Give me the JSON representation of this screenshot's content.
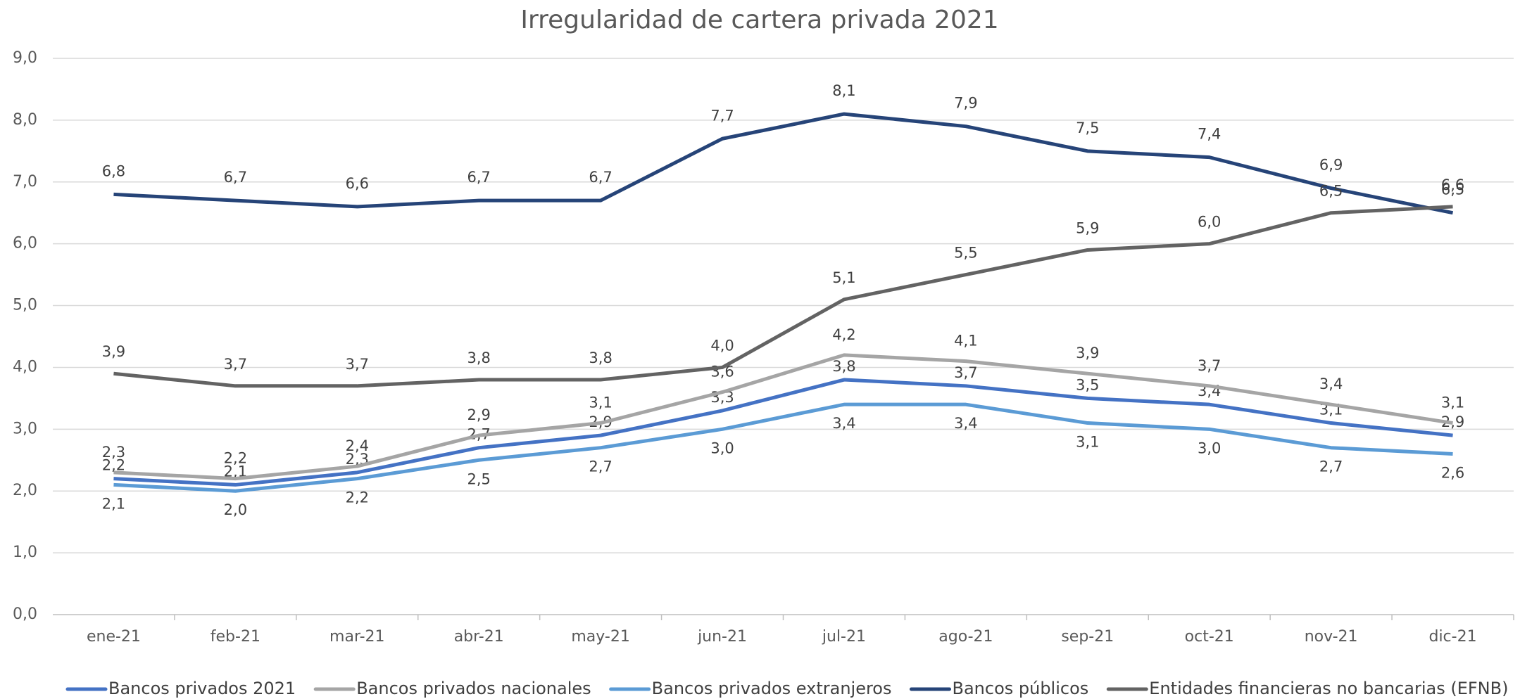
{
  "chart_data": {
    "type": "line",
    "title": "Irregularidad de cartera privada 2021",
    "categories": [
      "ene-21",
      "feb-21",
      "mar-21",
      "abr-21",
      "may-21",
      "jun-21",
      "jul-21",
      "ago-21",
      "sep-21",
      "oct-21",
      "nov-21",
      "dic-21"
    ],
    "ylim": [
      0,
      9
    ],
    "yticks": [
      {
        "value": 0,
        "label": "0,0"
      },
      {
        "value": 1,
        "label": "1,0"
      },
      {
        "value": 2,
        "label": "2,0"
      },
      {
        "value": 3,
        "label": "3,0"
      },
      {
        "value": 4,
        "label": "4,0"
      },
      {
        "value": 5,
        "label": "5,0"
      },
      {
        "value": 6,
        "label": "6,0"
      },
      {
        "value": 7,
        "label": "7,0"
      },
      {
        "value": 8,
        "label": "8,0"
      },
      {
        "value": 9,
        "label": "9,0"
      }
    ],
    "grid": true,
    "legend": "bottom",
    "series": [
      {
        "name": "Bancos privados 2021",
        "color": "#4472c4",
        "values": [
          2.2,
          2.1,
          2.3,
          2.7,
          2.9,
          3.3,
          3.8,
          3.7,
          3.5,
          3.4,
          3.1,
          2.9
        ],
        "value_labels": [
          "2,2",
          "2,1",
          "2,3",
          "2,7",
          "2,9",
          "3,3",
          "3,8",
          "3,7",
          "3,5",
          "3,4",
          "3,1",
          "2,9"
        ]
      },
      {
        "name": "Bancos privados nacionales",
        "color": "#a5a5a5",
        "values": [
          2.3,
          2.2,
          2.4,
          2.9,
          3.1,
          3.6,
          4.2,
          4.1,
          3.9,
          3.7,
          3.4,
          3.1
        ],
        "value_labels": [
          "2,3",
          "2,2",
          "2,4",
          "2,9",
          "3,1",
          "3,6",
          "4,2",
          "4,1",
          "3,9",
          "3,7",
          "3,4",
          "3,1"
        ]
      },
      {
        "name": "Bancos privados extranjeros",
        "color": "#5b9bd5",
        "values": [
          2.1,
          2.0,
          2.2,
          2.5,
          2.7,
          3.0,
          3.4,
          3.4,
          3.1,
          3.0,
          2.7,
          2.6
        ],
        "value_labels": [
          "2,1",
          "2,0",
          "2,2",
          "2,5",
          "2,7",
          "3,0",
          "3,4",
          "3,4",
          "3,1",
          "3,0",
          "2,7",
          "2,6"
        ]
      },
      {
        "name": "Bancos públicos",
        "color": "#264478",
        "values": [
          6.8,
          6.7,
          6.6,
          6.7,
          6.7,
          7.7,
          8.1,
          7.9,
          7.5,
          7.4,
          6.9,
          6.5
        ],
        "value_labels": [
          "6,8",
          "6,7",
          "6,6",
          "6,7",
          "6,7",
          "7,7",
          "8,1",
          "7,9",
          "7,5",
          "7,4",
          "6,9",
          "6,5"
        ]
      },
      {
        "name": "Entidades financieras no bancarias (EFNB)",
        "color": "#636363",
        "values": [
          3.9,
          3.7,
          3.7,
          3.8,
          3.8,
          4.0,
          5.1,
          5.5,
          5.9,
          6.0,
          6.5,
          6.6
        ],
        "value_labels": [
          "3,9",
          "3,7",
          "3,7",
          "3,8",
          "3,8",
          "4,0",
          "5,1",
          "5,5",
          "5,9",
          "6,0",
          "6,5",
          "6,6"
        ]
      }
    ]
  }
}
